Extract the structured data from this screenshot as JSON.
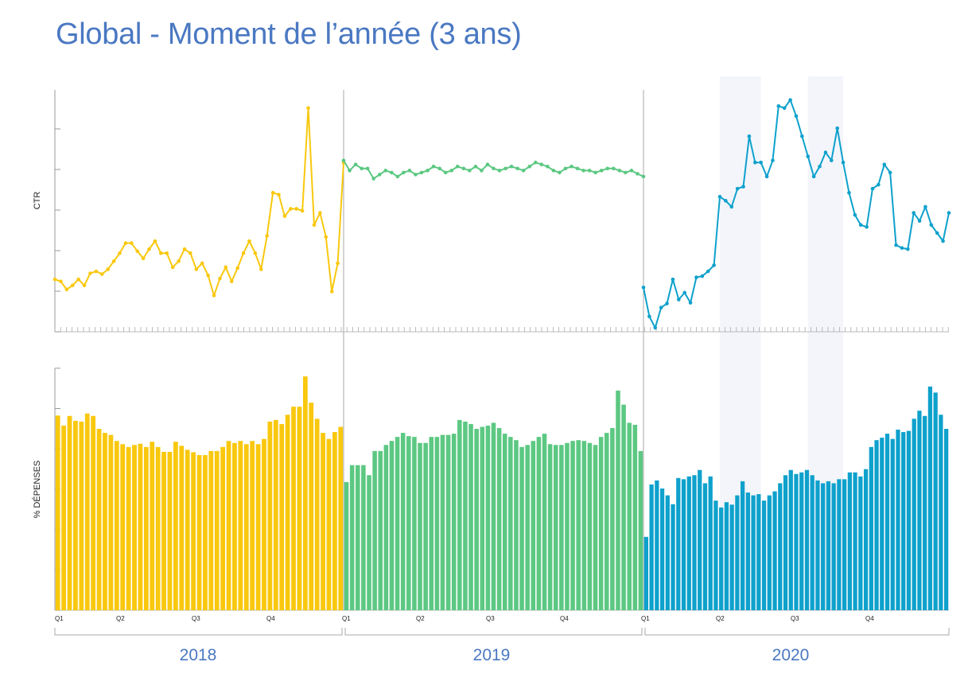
{
  "chart_data": {
    "type": "line",
    "title": "Global - Moment de l’année (3 ans)",
    "panels": [
      {
        "id": "ctr",
        "type": "line",
        "ylabel": "CTR"
      },
      {
        "id": "spend",
        "type": "bar",
        "ylabel": "% DÉPENSES"
      }
    ],
    "years": [
      "2018",
      "2019",
      "2020"
    ],
    "quarter_labels": [
      "Q1",
      "Q2",
      "Q3",
      "Q4"
    ],
    "colors": {
      "2018": "#f9c80e",
      "2019": "#5cc882",
      "2020": "#0ea1cc"
    },
    "highlight_color": "#f3f5fb",
    "highlight_weeks_2020": [
      [
        13,
        20
      ],
      [
        28,
        34
      ]
    ],
    "ctr_ylim": [
      0,
      6
    ],
    "spend_ylim": [
      0,
      6
    ],
    "series": [
      {
        "name": "2018",
        "ctr": [
          1.3,
          1.25,
          1.05,
          1.15,
          1.3,
          1.15,
          1.45,
          1.5,
          1.43,
          1.55,
          1.75,
          1.95,
          2.2,
          2.2,
          2.0,
          1.82,
          2.05,
          2.25,
          1.95,
          1.95,
          1.6,
          1.75,
          2.05,
          1.95,
          1.55,
          1.7,
          1.4,
          0.9,
          1.32,
          1.6,
          1.25,
          1.58,
          1.95,
          2.25,
          1.95,
          1.55,
          2.38,
          3.45,
          3.4,
          2.87,
          3.05,
          3.05,
          3.0,
          5.55,
          2.65,
          2.95,
          2.35,
          1.0,
          1.7,
          4.2
        ],
        "spend": [
          4.83,
          4.58,
          4.82,
          4.7,
          4.68,
          4.88,
          4.82,
          4.5,
          4.4,
          4.35,
          4.2,
          4.12,
          4.05,
          4.1,
          4.13,
          4.05,
          4.18,
          4.05,
          3.93,
          3.93,
          4.18,
          4.08,
          3.98,
          3.92,
          3.85,
          3.85,
          3.95,
          3.95,
          4.05,
          4.2,
          4.15,
          4.2,
          4.12,
          4.2,
          4.12,
          4.25,
          4.68,
          4.72,
          4.62,
          4.85,
          5.05,
          5.05,
          5.8,
          5.15,
          4.75,
          4.4,
          4.25,
          4.42,
          4.55
        ]
      },
      {
        "name": "2019",
        "ctr": [
          4.25,
          4.0,
          4.15,
          4.05,
          4.05,
          3.8,
          3.9,
          4.0,
          3.95,
          3.85,
          3.95,
          4.0,
          3.9,
          3.95,
          4.0,
          4.1,
          4.05,
          3.95,
          4.0,
          4.1,
          4.05,
          4.0,
          4.1,
          4.0,
          4.15,
          4.05,
          4.0,
          4.05,
          4.1,
          4.05,
          4.0,
          4.1,
          4.2,
          4.15,
          4.1,
          4.0,
          3.95,
          4.05,
          4.1,
          4.05,
          4.0,
          4.0,
          3.95,
          4.0,
          4.05,
          4.05,
          4.0,
          3.95,
          4.0,
          3.92,
          3.85
        ],
        "spend": [
          3.18,
          3.6,
          3.6,
          3.6,
          3.35,
          3.95,
          3.95,
          4.1,
          4.2,
          4.3,
          4.4,
          4.32,
          4.3,
          4.15,
          4.15,
          4.3,
          4.3,
          4.35,
          4.35,
          4.38,
          4.72,
          4.68,
          4.62,
          4.5,
          4.55,
          4.58,
          4.65,
          4.52,
          4.38,
          4.3,
          4.22,
          4.05,
          4.1,
          4.2,
          4.3,
          4.38,
          4.12,
          4.1,
          4.1,
          4.15,
          4.2,
          4.22,
          4.2,
          4.15,
          4.1,
          4.3,
          4.4,
          4.52,
          5.45,
          5.1,
          4.65,
          4.6,
          3.95
        ]
      },
      {
        "name": "2020",
        "ctr": [
          1.1,
          0.38,
          0.1,
          0.6,
          0.7,
          1.3,
          0.8,
          0.97,
          0.72,
          1.35,
          1.38,
          1.5,
          1.65,
          3.35,
          3.25,
          3.1,
          3.55,
          3.6,
          4.85,
          4.2,
          4.2,
          3.85,
          4.25,
          5.6,
          5.55,
          5.75,
          5.35,
          4.85,
          4.35,
          3.85,
          4.1,
          4.45,
          4.25,
          5.05,
          4.2,
          3.45,
          2.9,
          2.65,
          2.6,
          3.55,
          3.65,
          4.15,
          3.95,
          2.15,
          2.08,
          2.05,
          2.95,
          2.75,
          3.1,
          2.65,
          2.45,
          2.25,
          2.95
        ],
        "spend": [
          1.82,
          3.12,
          3.22,
          3.02,
          2.85,
          2.63,
          3.28,
          3.25,
          3.32,
          3.35,
          3.48,
          3.15,
          3.32,
          2.72,
          2.55,
          2.68,
          2.62,
          2.85,
          3.2,
          2.92,
          2.85,
          2.88,
          2.72,
          2.85,
          2.95,
          3.15,
          3.35,
          3.48,
          3.38,
          3.42,
          3.48,
          3.35,
          3.22,
          3.15,
          3.2,
          3.15,
          3.25,
          3.25,
          3.42,
          3.42,
          3.32,
          3.5,
          4.05,
          4.22,
          4.28,
          4.38,
          4.25,
          4.48,
          4.42,
          4.45,
          4.75,
          4.95,
          4.82,
          5.55,
          5.4,
          4.85,
          4.5
        ]
      }
    ]
  },
  "ui": {
    "title": "Global - Moment de l’année (3 ans)",
    "ylabel_top": "CTR",
    "ylabel_bottom": "% DÉPENSES",
    "q1": "Q1",
    "q2": "Q2",
    "q3": "Q3",
    "q4": "Q4",
    "year_2018": "2018",
    "year_2019": "2019",
    "year_2020": "2020"
  }
}
